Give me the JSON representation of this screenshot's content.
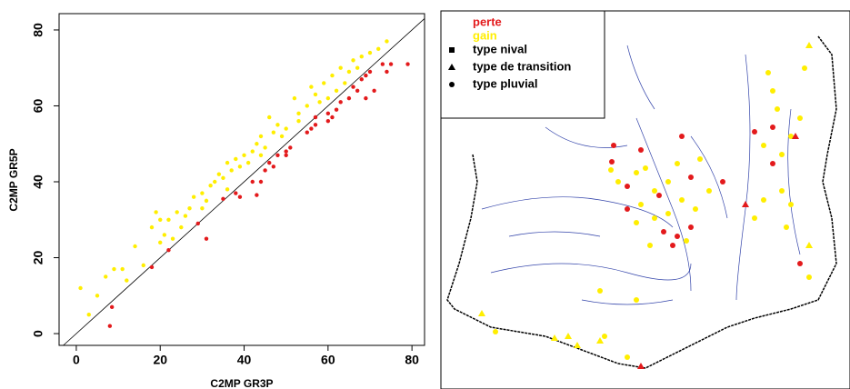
{
  "chart_data": {
    "type": "scatter",
    "xlabel": "C2MP GR3P",
    "ylabel": "C2MP GR5P",
    "xlim": [
      -4.1,
      83
    ],
    "ylim": [
      -3.1,
      84.3
    ],
    "xticks": [
      0,
      20,
      40,
      60,
      80
    ],
    "yticks": [
      0,
      20,
      40,
      60,
      80
    ],
    "series": [
      {
        "name": "perte",
        "color": "#e31a1c",
        "x": [
          8,
          8.5,
          18,
          22,
          29,
          31,
          35,
          38,
          39,
          43,
          44,
          45,
          46,
          47,
          48,
          50,
          51,
          55,
          57,
          57,
          60,
          61,
          62,
          63,
          65,
          66,
          67,
          68,
          69,
          69,
          70,
          71,
          73,
          74,
          75,
          79,
          60,
          56,
          50,
          42
        ],
        "values": [
          2,
          7,
          17.5,
          22,
          29,
          25,
          35.5,
          37,
          36,
          36.5,
          40,
          43,
          45,
          44,
          47,
          48,
          49,
          53,
          55,
          57,
          58,
          57,
          59,
          61,
          62,
          65,
          64,
          67,
          68,
          62,
          69,
          64,
          71,
          69,
          71,
          71,
          56,
          54,
          47,
          40
        ]
      },
      {
        "name": "gain",
        "color": "#ffee00",
        "x": [
          1,
          3,
          5,
          7,
          9,
          11,
          14,
          16,
          18,
          19,
          20,
          21,
          22,
          24,
          25,
          27,
          28,
          30,
          31,
          32,
          33,
          34,
          35,
          36,
          37,
          38,
          39,
          40,
          41,
          42,
          43,
          44,
          45,
          46,
          47,
          48,
          49,
          50,
          52,
          53,
          55,
          56,
          57,
          58,
          59,
          60,
          61,
          62,
          63,
          64,
          65,
          66,
          67,
          68,
          70,
          72,
          74,
          30,
          26,
          36,
          44,
          53,
          23,
          20,
          12
        ],
        "values": [
          12,
          5,
          10,
          15,
          17,
          17,
          23,
          18,
          28,
          32,
          30,
          26,
          30,
          32,
          28,
          33,
          36,
          37,
          35,
          39,
          40,
          42,
          41,
          45,
          43,
          46,
          44,
          47,
          45,
          48,
          50,
          52,
          49,
          57,
          53,
          55,
          52,
          54,
          62,
          58,
          60,
          65,
          63,
          61,
          66,
          62,
          68,
          64,
          70,
          66,
          69,
          72,
          70,
          73,
          74,
          75,
          77,
          33,
          31,
          38,
          47,
          56,
          25,
          24,
          14
        ]
      }
    ]
  },
  "map": {
    "legend": [
      "type nival",
      "type de transition",
      "type pluvial"
    ]
  }
}
